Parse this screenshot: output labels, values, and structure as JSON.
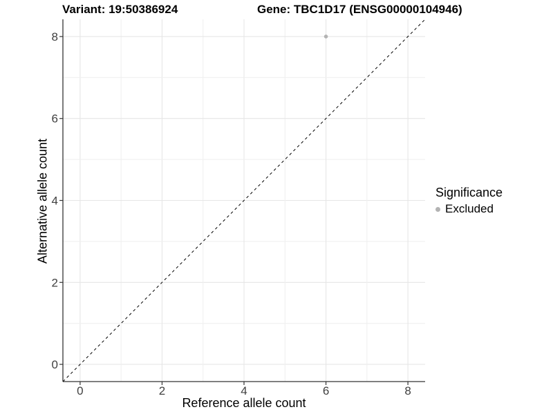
{
  "figure": {
    "titles": {
      "left": "Variant: 19:50386924",
      "right": "Gene: TBC1D17 (ENSG00000104946)"
    }
  },
  "chart_data": {
    "type": "scatter",
    "xlabel": "Reference allele count",
    "ylabel": "Alternative allele count",
    "xlim": [
      -0.42,
      8.42
    ],
    "ylim": [
      -0.42,
      8.42
    ],
    "x_ticks": [
      0,
      2,
      4,
      6,
      8
    ],
    "y_ticks": [
      0,
      2,
      4,
      6,
      8
    ],
    "grid": {
      "on": true,
      "interval": 1,
      "major_color": "#e6e6e6",
      "minor_color": "#f0f0f0"
    },
    "identity_line": {
      "equation": "y = x",
      "style": "dashed",
      "color": "#000000"
    },
    "series": [
      {
        "name": "Excluded",
        "color": "#b3b3b3",
        "points": [
          {
            "x": 6,
            "y": 8
          }
        ]
      }
    ],
    "legend": {
      "title": "Significance",
      "position": "right",
      "items": [
        {
          "label": "Excluded",
          "color": "#b3b3b3"
        }
      ]
    },
    "colors": {
      "axis": "#333333",
      "tick_label": "#404040",
      "background": "#ffffff"
    }
  }
}
